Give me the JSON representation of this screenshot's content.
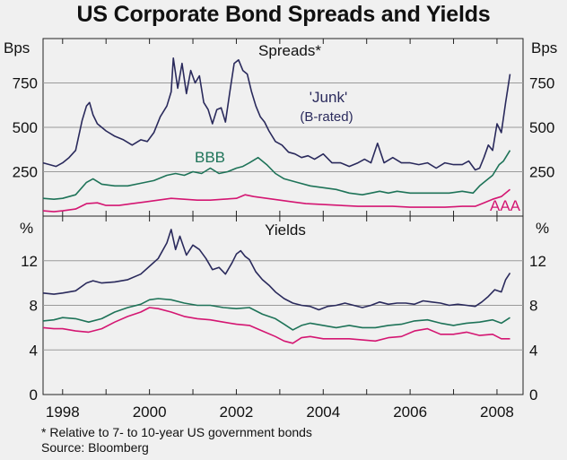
{
  "title": "US Corporate Bond Spreads and Yields",
  "footnote": "* Relative to 7- to 10-year US government bonds",
  "source": "Source: Bloomberg",
  "chart_data": [
    {
      "type": "line",
      "title": "Spreads*",
      "ylabel_left": "Bps",
      "ylabel_right": "Bps",
      "ylim": [
        0,
        1000
      ],
      "yticks": [
        250,
        500,
        750
      ],
      "xlim": [
        1997.55,
        2008.6
      ],
      "series": [
        {
          "name": "'Junk'",
          "label_line2": "(B-rated)",
          "color": "#2a2a5c",
          "x": [
            1997.55,
            1997.7,
            1997.85,
            1998.0,
            1998.15,
            1998.3,
            1998.45,
            1998.55,
            1998.62,
            1998.7,
            1998.8,
            1999.0,
            1999.2,
            1999.4,
            1999.6,
            1999.8,
            1999.95,
            2000.1,
            2000.25,
            2000.4,
            2000.5,
            2000.55,
            2000.65,
            2000.75,
            2000.85,
            2000.95,
            2001.05,
            2001.15,
            2001.25,
            2001.35,
            2001.45,
            2001.55,
            2001.65,
            2001.75,
            2001.85,
            2001.95,
            2002.05,
            2002.15,
            2002.25,
            2002.35,
            2002.45,
            2002.55,
            2002.65,
            2002.75,
            2002.9,
            2003.05,
            2003.2,
            2003.35,
            2003.5,
            2003.65,
            2003.8,
            2004.0,
            2004.2,
            2004.4,
            2004.6,
            2004.8,
            2004.95,
            2005.1,
            2005.25,
            2005.4,
            2005.6,
            2005.8,
            2006.0,
            2006.2,
            2006.4,
            2006.6,
            2006.8,
            2007.0,
            2007.2,
            2007.35,
            2007.5,
            2007.6,
            2007.7,
            2007.8,
            2007.9,
            2008.0,
            2008.1,
            2008.2,
            2008.3
          ],
          "values": [
            300,
            290,
            280,
            300,
            330,
            370,
            540,
            620,
            640,
            570,
            520,
            480,
            450,
            430,
            400,
            430,
            420,
            470,
            560,
            620,
            700,
            890,
            720,
            860,
            690,
            820,
            750,
            790,
            640,
            600,
            520,
            600,
            610,
            530,
            700,
            860,
            880,
            820,
            800,
            700,
            620,
            560,
            530,
            480,
            420,
            400,
            360,
            350,
            330,
            340,
            320,
            350,
            300,
            300,
            280,
            300,
            320,
            300,
            410,
            300,
            330,
            300,
            300,
            290,
            300,
            270,
            300,
            290,
            290,
            310,
            260,
            270,
            330,
            400,
            370,
            520,
            470,
            640,
            800
          ]
        },
        {
          "name": "BBB",
          "color": "#1e7358",
          "x": [
            1997.55,
            1997.8,
            1998.0,
            1998.3,
            1998.55,
            1998.7,
            1998.9,
            1999.2,
            1999.5,
            1999.8,
            2000.1,
            2000.4,
            2000.6,
            2000.8,
            2001.0,
            2001.2,
            2001.4,
            2001.6,
            2001.8,
            2002.0,
            2002.15,
            2002.3,
            2002.5,
            2002.7,
            2002.9,
            2003.1,
            2003.4,
            2003.7,
            2004.0,
            2004.3,
            2004.6,
            2004.9,
            2005.1,
            2005.3,
            2005.5,
            2005.7,
            2006.0,
            2006.3,
            2006.6,
            2006.9,
            2007.2,
            2007.45,
            2007.6,
            2007.75,
            2007.9,
            2008.05,
            2008.15,
            2008.3
          ],
          "values": [
            100,
            95,
            100,
            120,
            190,
            210,
            180,
            170,
            170,
            185,
            200,
            230,
            240,
            230,
            250,
            240,
            270,
            240,
            250,
            270,
            280,
            300,
            330,
            290,
            240,
            210,
            190,
            170,
            160,
            150,
            130,
            120,
            130,
            140,
            130,
            140,
            130,
            130,
            130,
            130,
            140,
            130,
            170,
            200,
            230,
            290,
            310,
            370
          ]
        },
        {
          "name": "AAA",
          "color": "#d41672",
          "x": [
            1997.55,
            1997.8,
            1998.0,
            1998.3,
            1998.55,
            1998.8,
            1999.0,
            1999.3,
            1999.6,
            1999.9,
            2000.2,
            2000.5,
            2000.8,
            2001.1,
            2001.4,
            2001.7,
            2002.0,
            2002.2,
            2002.4,
            2002.7,
            2003.0,
            2003.3,
            2003.6,
            2004.0,
            2004.4,
            2004.8,
            2005.2,
            2005.6,
            2006.0,
            2006.4,
            2006.8,
            2007.2,
            2007.5,
            2007.7,
            2007.9,
            2008.1,
            2008.3
          ],
          "values": [
            30,
            25,
            30,
            40,
            70,
            75,
            60,
            60,
            70,
            80,
            90,
            100,
            95,
            90,
            90,
            95,
            100,
            120,
            110,
            100,
            90,
            80,
            70,
            65,
            60,
            55,
            55,
            55,
            50,
            50,
            50,
            55,
            55,
            75,
            95,
            110,
            150
          ]
        }
      ]
    },
    {
      "type": "line",
      "title": "Yields",
      "ylabel_left": "%",
      "ylabel_right": "%",
      "ylim": [
        0,
        16
      ],
      "yticks": [
        0,
        4,
        8,
        12
      ],
      "xlim": [
        1997.55,
        2008.6
      ],
      "xticks": [
        1998,
        2000,
        2002,
        2004,
        2006,
        2008
      ],
      "xtick_labels": [
        "1998",
        "2000",
        "2002",
        "2004",
        "2006",
        "2008"
      ],
      "series": [
        {
          "name": "Junk",
          "color": "#2a2a5c",
          "x": [
            1997.55,
            1997.8,
            1998.0,
            1998.3,
            1998.55,
            1998.7,
            1998.9,
            1999.2,
            1999.5,
            1999.8,
            2000.0,
            2000.2,
            2000.4,
            2000.5,
            2000.6,
            2000.7,
            2000.85,
            2001.0,
            2001.15,
            2001.3,
            2001.45,
            2001.6,
            2001.75,
            2001.9,
            2002.0,
            2002.1,
            2002.2,
            2002.3,
            2002.45,
            2002.6,
            2002.75,
            2002.9,
            2003.1,
            2003.3,
            2003.5,
            2003.7,
            2003.9,
            2004.1,
            2004.3,
            2004.5,
            2004.7,
            2004.9,
            2005.1,
            2005.3,
            2005.5,
            2005.7,
            2005.9,
            2006.1,
            2006.3,
            2006.5,
            2006.7,
            2006.9,
            2007.1,
            2007.3,
            2007.5,
            2007.65,
            2007.8,
            2007.95,
            2008.1,
            2008.2,
            2008.3
          ],
          "values": [
            9.1,
            9.0,
            9.1,
            9.3,
            10.0,
            10.2,
            10.0,
            10.1,
            10.3,
            10.8,
            11.5,
            12.2,
            13.6,
            14.8,
            13.0,
            14.2,
            12.5,
            13.4,
            13.0,
            12.2,
            11.2,
            11.4,
            10.8,
            11.8,
            12.6,
            12.9,
            12.4,
            12.1,
            11.0,
            10.3,
            9.8,
            9.2,
            8.6,
            8.2,
            8.0,
            7.9,
            7.6,
            7.9,
            8.0,
            8.2,
            8.0,
            7.8,
            8.0,
            8.3,
            8.1,
            8.2,
            8.2,
            8.1,
            8.4,
            8.3,
            8.2,
            8.0,
            8.1,
            8.0,
            7.9,
            8.3,
            8.8,
            9.4,
            9.2,
            10.3,
            10.9
          ]
        },
        {
          "name": "BBB",
          "color": "#1e7358",
          "x": [
            1997.55,
            1997.8,
            1998.0,
            1998.3,
            1998.6,
            1998.9,
            1999.2,
            1999.5,
            1999.8,
            2000.0,
            2000.2,
            2000.5,
            2000.8,
            2001.1,
            2001.4,
            2001.7,
            2002.0,
            2002.3,
            2002.6,
            2002.9,
            2003.1,
            2003.3,
            2003.5,
            2003.7,
            2004.0,
            2004.3,
            2004.6,
            2004.9,
            2005.2,
            2005.5,
            2005.8,
            2006.1,
            2006.4,
            2006.7,
            2007.0,
            2007.3,
            2007.6,
            2007.9,
            2008.1,
            2008.3
          ],
          "values": [
            6.6,
            6.7,
            6.9,
            6.8,
            6.5,
            6.8,
            7.4,
            7.8,
            8.1,
            8.5,
            8.6,
            8.5,
            8.2,
            8.0,
            8.0,
            7.8,
            7.7,
            7.8,
            7.2,
            6.8,
            6.3,
            5.8,
            6.2,
            6.4,
            6.2,
            6.0,
            6.2,
            6.0,
            6.0,
            6.2,
            6.3,
            6.6,
            6.7,
            6.4,
            6.2,
            6.4,
            6.5,
            6.7,
            6.4,
            6.9
          ]
        },
        {
          "name": "AAA",
          "color": "#d41672",
          "x": [
            1997.55,
            1997.8,
            1998.0,
            1998.3,
            1998.6,
            1998.9,
            1999.2,
            1999.5,
            1999.8,
            2000.0,
            2000.2,
            2000.5,
            2000.8,
            2001.1,
            2001.4,
            2001.7,
            2002.0,
            2002.3,
            2002.6,
            2002.9,
            2003.1,
            2003.3,
            2003.5,
            2003.7,
            2004.0,
            2004.3,
            2004.6,
            2004.9,
            2005.2,
            2005.5,
            2005.8,
            2006.1,
            2006.4,
            2006.7,
            2007.0,
            2007.3,
            2007.6,
            2007.9,
            2008.1,
            2008.3
          ],
          "values": [
            6.0,
            5.9,
            5.9,
            5.7,
            5.6,
            5.9,
            6.5,
            7.0,
            7.4,
            7.8,
            7.7,
            7.4,
            7.0,
            6.8,
            6.7,
            6.5,
            6.3,
            6.2,
            5.7,
            5.2,
            4.8,
            4.6,
            5.1,
            5.2,
            5.0,
            5.0,
            5.0,
            4.9,
            4.8,
            5.1,
            5.2,
            5.7,
            5.9,
            5.4,
            5.4,
            5.6,
            5.3,
            5.4,
            5.0,
            5.0
          ]
        }
      ]
    }
  ]
}
